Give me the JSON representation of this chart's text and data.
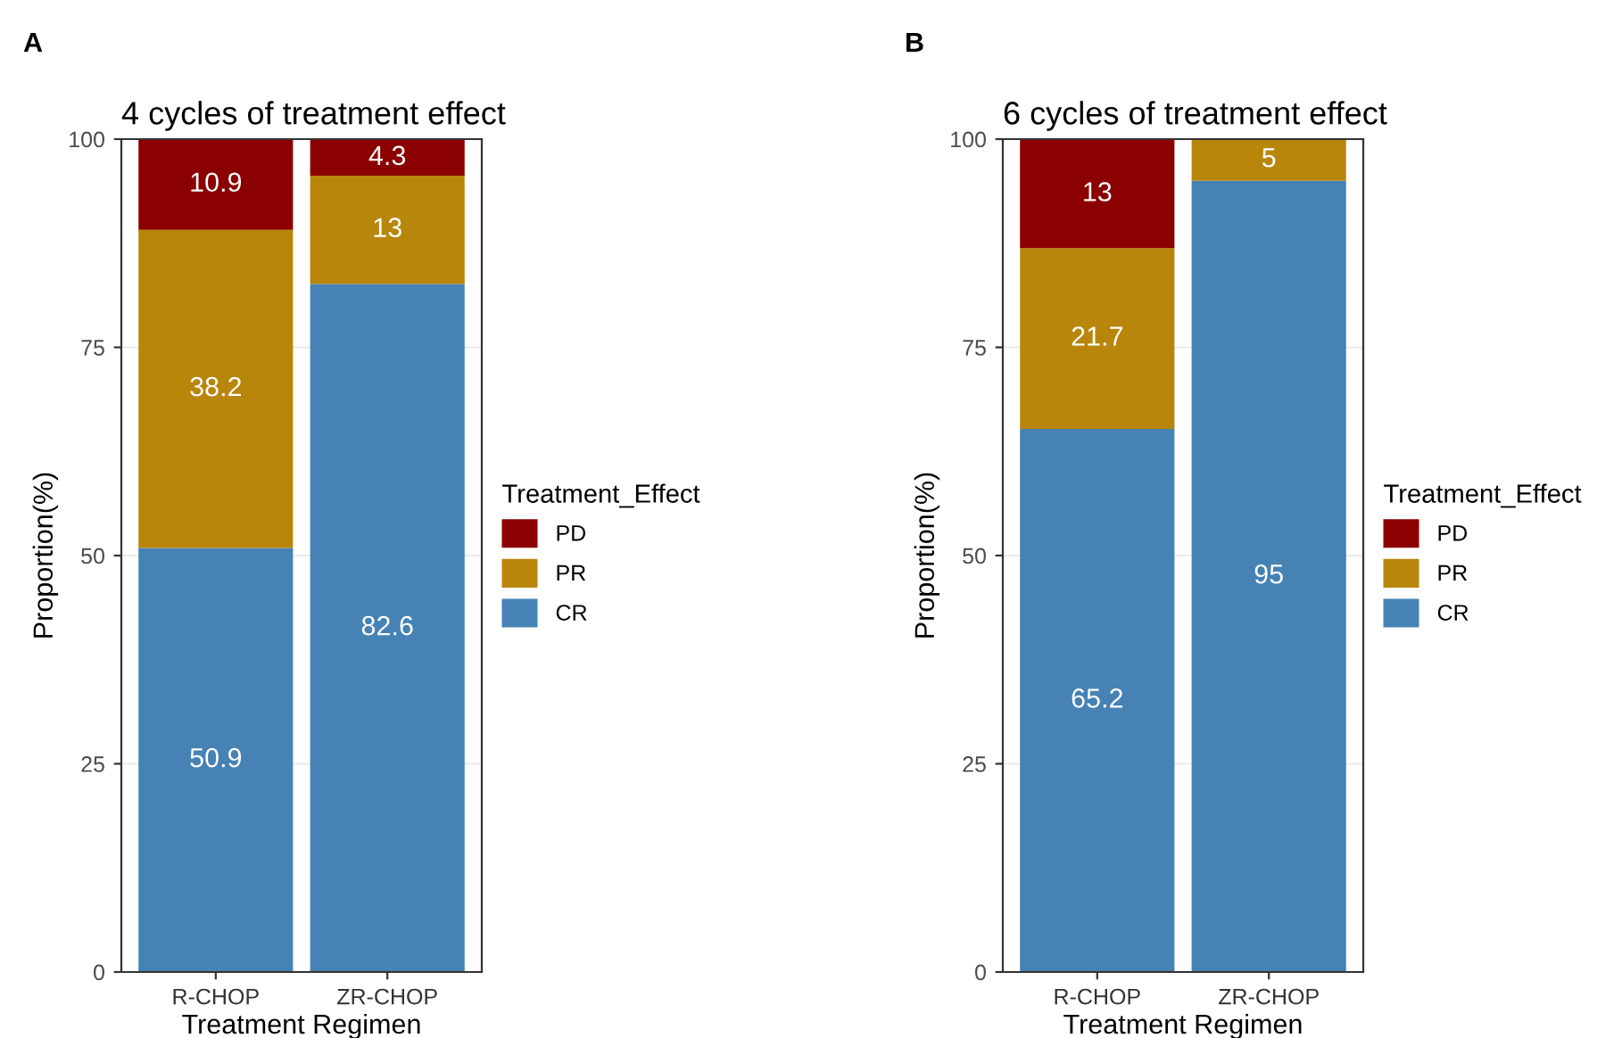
{
  "chart_data": [
    {
      "type": "bar",
      "stacked": true,
      "title": "4 cycles of treatment effect",
      "xlabel": "Treatment Regimen",
      "ylabel": "Proportion(%)",
      "legend_title": "Treatment_Effect",
      "annotations": [
        "A"
      ],
      "categories": [
        "R-CHOP",
        "ZR-CHOP"
      ],
      "series": [
        {
          "name": "CR",
          "color": "#4682b4",
          "values": [
            50.9,
            82.6
          ]
        },
        {
          "name": "PR",
          "color": "#b8860b",
          "values": [
            38.2,
            13
          ]
        },
        {
          "name": "PD",
          "color": "#8b0000",
          "values": [
            10.9,
            4.3
          ]
        }
      ],
      "ylim": [
        0,
        100
      ],
      "yticks": [
        0,
        25,
        50,
        75,
        100
      ],
      "grid": "y",
      "legend": "right",
      "data_labels": true
    },
    {
      "type": "bar",
      "stacked": true,
      "title": "6 cycles of treatment effect",
      "xlabel": "Treatment Regimen",
      "ylabel": "Proportion(%)",
      "legend_title": "Treatment_Effect",
      "annotations": [
        "B"
      ],
      "categories": [
        "R-CHOP",
        "ZR-CHOP"
      ],
      "series": [
        {
          "name": "CR",
          "color": "#4682b4",
          "values": [
            65.2,
            95
          ]
        },
        {
          "name": "PR",
          "color": "#b8860b",
          "values": [
            21.7,
            5
          ]
        },
        {
          "name": "PD",
          "color": "#8b0000",
          "values": [
            13,
            null
          ]
        }
      ],
      "ylim": [
        0,
        100
      ],
      "yticks": [
        0,
        25,
        50,
        75,
        100
      ],
      "grid": "y",
      "legend": "right",
      "data_labels": true
    }
  ]
}
